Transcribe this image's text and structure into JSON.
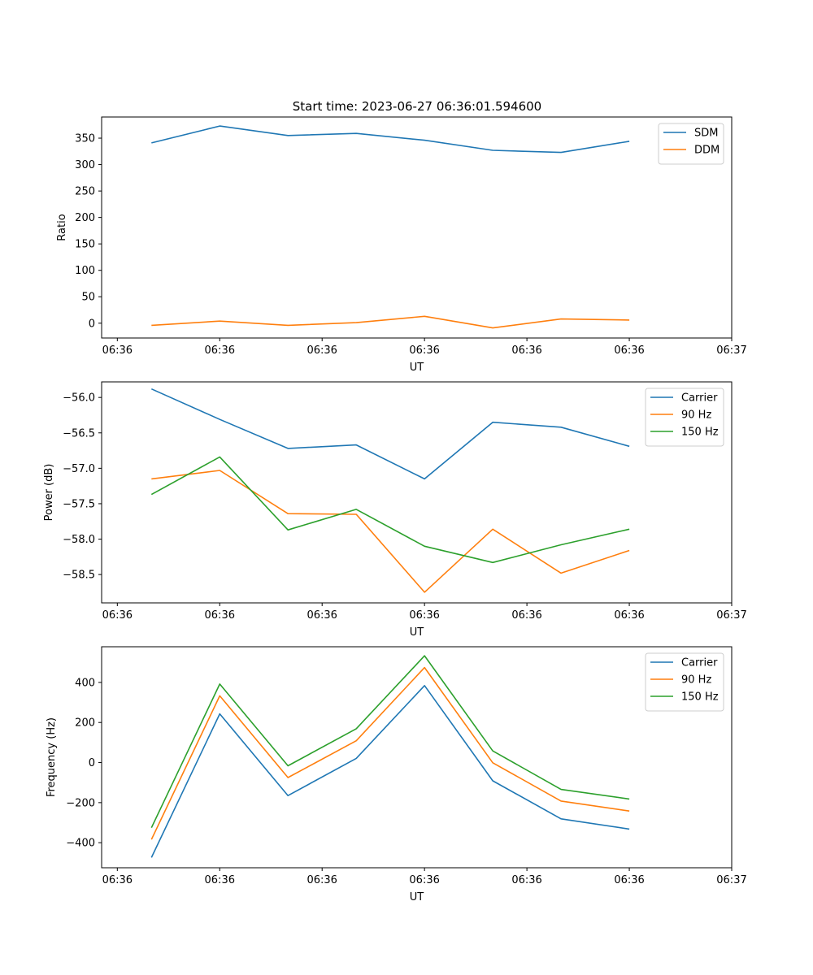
{
  "figure": {
    "title": "Start time: 2023-06-27 06:36:01.594600"
  },
  "chart_data": [
    {
      "type": "line",
      "title": "Start time: 2023-06-27 06:36:01.594600",
      "xlabel": "UT",
      "ylabel": "Ratio",
      "x_tick_labels": [
        "06:36",
        "06:36",
        "06:36",
        "06:36",
        "06:36",
        "06:36",
        "06:37"
      ],
      "y_ticks": [
        0,
        50,
        100,
        150,
        200,
        250,
        300,
        350
      ],
      "ylim": [
        -28,
        390
      ],
      "x": [
        1,
        2,
        3,
        4,
        5,
        6,
        7,
        8
      ],
      "xlim": [
        0.27,
        9.5
      ],
      "series": [
        {
          "name": "SDM",
          "color": "#1f77b4",
          "values": [
            341,
            373,
            355,
            359,
            346,
            327,
            323,
            344
          ]
        },
        {
          "name": "DDM",
          "color": "#ff7f0e",
          "values": [
            -4,
            4,
            -4,
            1,
            13,
            -9,
            8,
            6
          ]
        }
      ],
      "legend": "top-right",
      "grid": false
    },
    {
      "type": "line",
      "title": "",
      "xlabel": "UT",
      "ylabel": "Power (dB)",
      "x_tick_labels": [
        "06:36",
        "06:36",
        "06:36",
        "06:36",
        "06:36",
        "06:36",
        "06:37"
      ],
      "y_ticks": [
        -56.0,
        -56.5,
        -57.0,
        -57.5,
        -58.0,
        -58.5
      ],
      "y_tick_labels": [
        "−56.0",
        "−56.5",
        "−57.0",
        "−57.5",
        "−58.0",
        "−58.5"
      ],
      "ylim": [
        -58.9,
        -55.78
      ],
      "x": [
        1,
        2,
        3,
        4,
        5,
        6,
        7,
        8
      ],
      "xlim": [
        0.27,
        9.5
      ],
      "series": [
        {
          "name": "Carrier",
          "color": "#1f77b4",
          "values": [
            -55.88,
            -56.31,
            -56.72,
            -56.67,
            -57.15,
            -56.35,
            -56.42,
            -56.69
          ]
        },
        {
          "name": "90 Hz",
          "color": "#ff7f0e",
          "values": [
            -57.15,
            -57.03,
            -57.64,
            -57.65,
            -58.75,
            -57.86,
            -58.48,
            -58.16
          ]
        },
        {
          "name": "150 Hz",
          "color": "#2ca02c",
          "values": [
            -57.37,
            -56.84,
            -57.87,
            -57.58,
            -58.1,
            -58.33,
            -58.08,
            -57.86
          ]
        }
      ],
      "legend": "top-right",
      "grid": false
    },
    {
      "type": "line",
      "title": "",
      "xlabel": "UT",
      "ylabel": "Frequency (Hz)",
      "x_tick_labels": [
        "06:36",
        "06:36",
        "06:36",
        "06:36",
        "06:36",
        "06:36",
        "06:37"
      ],
      "y_ticks": [
        -400,
        -200,
        0,
        200,
        400
      ],
      "y_tick_labels": [
        "−400",
        "−200",
        "0",
        "200",
        "400"
      ],
      "ylim": [
        -525,
        578
      ],
      "x": [
        1,
        2,
        3,
        4,
        5,
        6,
        7,
        8
      ],
      "xlim": [
        0.27,
        9.5
      ],
      "series": [
        {
          "name": "Carrier",
          "color": "#1f77b4",
          "values": [
            -474,
            243,
            -165,
            21,
            384,
            -91,
            -281,
            -332
          ]
        },
        {
          "name": "90 Hz",
          "color": "#ff7f0e",
          "values": [
            -384,
            333,
            -75,
            109,
            474,
            -1,
            -192,
            -242
          ]
        },
        {
          "name": "150 Hz",
          "color": "#2ca02c",
          "values": [
            -325,
            392,
            -16,
            169,
            533,
            58,
            -134,
            -182
          ]
        }
      ],
      "legend": "top-right",
      "grid": false
    }
  ]
}
